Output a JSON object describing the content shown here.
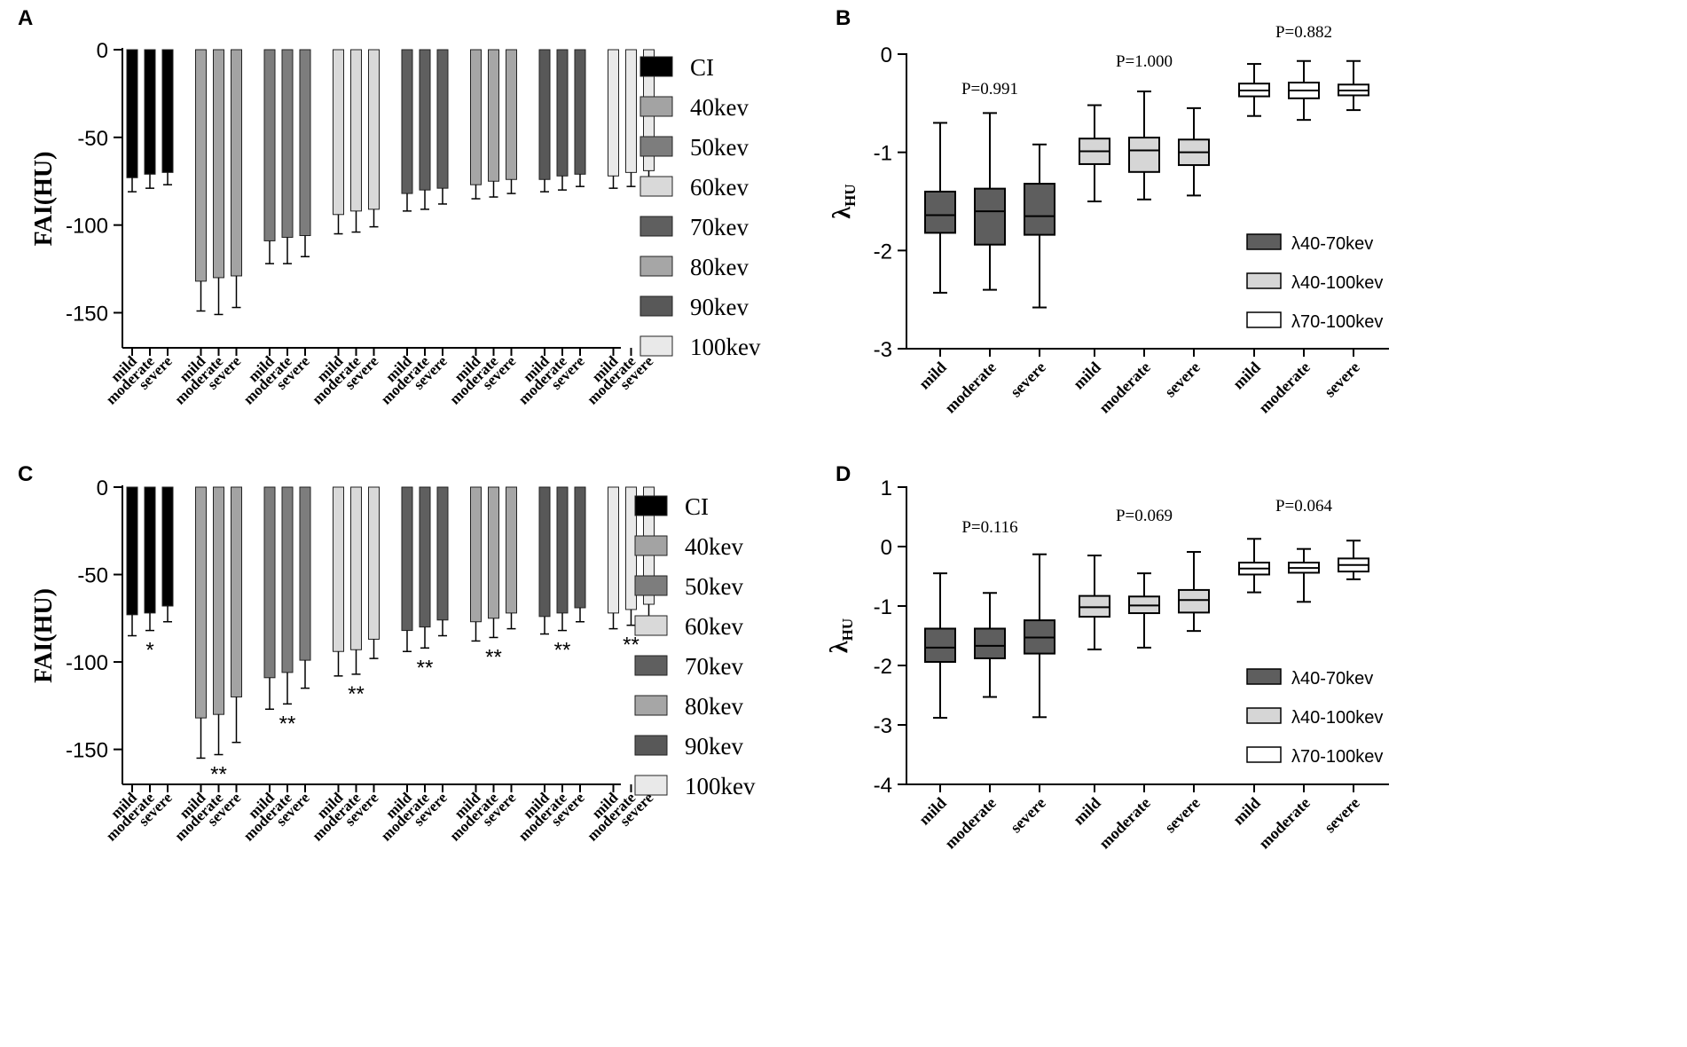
{
  "figure": {
    "title": ""
  },
  "colors": {
    "CI": "#000000",
    "40kev": "#a3a3a3",
    "50kev": "#7d7d7d",
    "60kev": "#d9d9d9",
    "70kev": "#5f5f5f",
    "80kev": "#a6a6a6",
    "90kev": "#585858",
    "100kev": "#e9e9e9",
    "box_40_70": "#5e5e5e",
    "box_40_100": "#d6d6d6",
    "box_70_100": "#ffffff"
  },
  "chart_data": [
    {
      "panel": "A",
      "type": "bar",
      "ylabel": "FAI(HU)",
      "ylim": [
        -170,
        0
      ],
      "yticks": [
        0,
        -50,
        -100,
        -150
      ],
      "categories": [
        "mild",
        "moderate",
        "severe"
      ],
      "series": [
        {
          "name": "CI",
          "values": [
            -73,
            -71,
            -70
          ],
          "errors": [
            8,
            8,
            7
          ],
          "sig": ""
        },
        {
          "name": "40kev",
          "values": [
            -132,
            -130,
            -129
          ],
          "errors": [
            17,
            21,
            18
          ],
          "sig": ""
        },
        {
          "name": "50kev",
          "values": [
            -109,
            -107,
            -106
          ],
          "errors": [
            13,
            15,
            12
          ],
          "sig": ""
        },
        {
          "name": "60kev",
          "values": [
            -94,
            -92,
            -91
          ],
          "errors": [
            11,
            12,
            10
          ],
          "sig": ""
        },
        {
          "name": "70kev",
          "values": [
            -82,
            -80,
            -79
          ],
          "errors": [
            10,
            11,
            9
          ],
          "sig": ""
        },
        {
          "name": "80kev",
          "values": [
            -77,
            -75,
            -74
          ],
          "errors": [
            8,
            9,
            8
          ],
          "sig": ""
        },
        {
          "name": "90kev",
          "values": [
            -74,
            -72,
            -71
          ],
          "errors": [
            7,
            8,
            7
          ],
          "sig": ""
        },
        {
          "name": "100kev",
          "values": [
            -72,
            -70,
            -69
          ],
          "errors": [
            7,
            8,
            7
          ],
          "sig": ""
        }
      ],
      "legend": [
        "CI",
        "40kev",
        "50kev",
        "60kev",
        "70kev",
        "80kev",
        "90kev",
        "100kev"
      ]
    },
    {
      "panel": "B",
      "type": "box",
      "ylabel": "λHU",
      "ylim": [
        -3,
        0
      ],
      "yticks": [
        0,
        -1,
        -2,
        -3
      ],
      "categories": [
        "mild",
        "moderate",
        "severe"
      ],
      "groups": [
        {
          "name": "λ40-70kev",
          "pvalue": "P=0.991",
          "boxes": [
            {
              "min": -2.43,
              "q1": -1.82,
              "median": -1.64,
              "q3": -1.4,
              "max": -0.7
            },
            {
              "min": -2.4,
              "q1": -1.94,
              "median": -1.6,
              "q3": -1.37,
              "max": -0.6
            },
            {
              "min": -2.58,
              "q1": -1.84,
              "median": -1.65,
              "q3": -1.32,
              "max": -0.92
            }
          ]
        },
        {
          "name": "λ40-100kev",
          "pvalue": "P=1.000",
          "boxes": [
            {
              "min": -1.5,
              "q1": -1.12,
              "median": -0.99,
              "q3": -0.86,
              "max": -0.52
            },
            {
              "min": -1.48,
              "q1": -1.2,
              "median": -0.98,
              "q3": -0.85,
              "max": -0.38
            },
            {
              "min": -1.44,
              "q1": -1.13,
              "median": -1.0,
              "q3": -0.87,
              "max": -0.55
            }
          ]
        },
        {
          "name": "λ70-100kev",
          "pvalue": "P=0.882",
          "boxes": [
            {
              "min": -0.63,
              "q1": -0.43,
              "median": -0.37,
              "q3": -0.3,
              "max": -0.1
            },
            {
              "min": -0.67,
              "q1": -0.45,
              "median": -0.37,
              "q3": -0.29,
              "max": -0.07
            },
            {
              "min": -0.57,
              "q1": -0.42,
              "median": -0.37,
              "q3": -0.31,
              "max": -0.07
            }
          ]
        }
      ],
      "legend": [
        "λ40-70kev",
        "λ40-100kev",
        "λ70-100kev"
      ]
    },
    {
      "panel": "C",
      "type": "bar",
      "ylabel": "FAI(HU)",
      "ylim": [
        -170,
        0
      ],
      "yticks": [
        0,
        -50,
        -100,
        -150
      ],
      "categories": [
        "mild",
        "moderate",
        "severe"
      ],
      "series": [
        {
          "name": "CI",
          "values": [
            -73,
            -72,
            -68
          ],
          "errors": [
            12,
            10,
            9
          ],
          "sig": "*"
        },
        {
          "name": "40kev",
          "values": [
            -132,
            -130,
            -120
          ],
          "errors": [
            23,
            23,
            26
          ],
          "sig": "**"
        },
        {
          "name": "50kev",
          "values": [
            -109,
            -106,
            -99
          ],
          "errors": [
            18,
            18,
            16
          ],
          "sig": "**"
        },
        {
          "name": "60kev",
          "values": [
            -94,
            -93,
            -87
          ],
          "errors": [
            14,
            14,
            11
          ],
          "sig": "**"
        },
        {
          "name": "70kev",
          "values": [
            -82,
            -80,
            -76
          ],
          "errors": [
            12,
            12,
            9
          ],
          "sig": "**"
        },
        {
          "name": "80kev",
          "values": [
            -77,
            -75,
            -72
          ],
          "errors": [
            11,
            11,
            9
          ],
          "sig": "**"
        },
        {
          "name": "90kev",
          "values": [
            -74,
            -72,
            -69
          ],
          "errors": [
            10,
            10,
            8
          ],
          "sig": "**"
        },
        {
          "name": "100kev",
          "values": [
            -72,
            -70,
            -67
          ],
          "errors": [
            9,
            9,
            8
          ],
          "sig": "**"
        }
      ],
      "legend": [
        "CI",
        "40kev",
        "50kev",
        "60kev",
        "70kev",
        "80kev",
        "90kev",
        "100kev"
      ]
    },
    {
      "panel": "D",
      "type": "box",
      "ylabel": "λHU",
      "ylim": [
        -4,
        1
      ],
      "yticks": [
        1,
        0,
        -1,
        -2,
        -3,
        -4
      ],
      "categories": [
        "mild",
        "moderate",
        "severe"
      ],
      "groups": [
        {
          "name": "λ40-70kev",
          "pvalue": "P=0.116",
          "boxes": [
            {
              "min": -2.88,
              "q1": -1.94,
              "median": -1.7,
              "q3": -1.38,
              "max": -0.45
            },
            {
              "min": -2.53,
              "q1": -1.88,
              "median": -1.67,
              "q3": -1.38,
              "max": -0.78
            },
            {
              "min": -2.87,
              "q1": -1.8,
              "median": -1.53,
              "q3": -1.24,
              "max": -0.13
            }
          ]
        },
        {
          "name": "λ40-100kev",
          "pvalue": "P=0.069",
          "boxes": [
            {
              "min": -1.73,
              "q1": -1.18,
              "median": -1.02,
              "q3": -0.83,
              "max": -0.15
            },
            {
              "min": -1.7,
              "q1": -1.12,
              "median": -0.99,
              "q3": -0.84,
              "max": -0.45
            },
            {
              "min": -1.42,
              "q1": -1.11,
              "median": -0.9,
              "q3": -0.73,
              "max": -0.09
            }
          ]
        },
        {
          "name": "λ70-100kev",
          "pvalue": "P=0.064",
          "boxes": [
            {
              "min": -0.77,
              "q1": -0.47,
              "median": -0.37,
              "q3": -0.27,
              "max": 0.13
            },
            {
              "min": -0.93,
              "q1": -0.44,
              "median": -0.36,
              "q3": -0.27,
              "max": -0.04
            },
            {
              "min": -0.55,
              "q1": -0.42,
              "median": -0.31,
              "q3": -0.2,
              "max": 0.1
            }
          ]
        }
      ],
      "legend": [
        "λ40-70kev",
        "λ40-100kev",
        "λ70-100kev"
      ]
    }
  ]
}
